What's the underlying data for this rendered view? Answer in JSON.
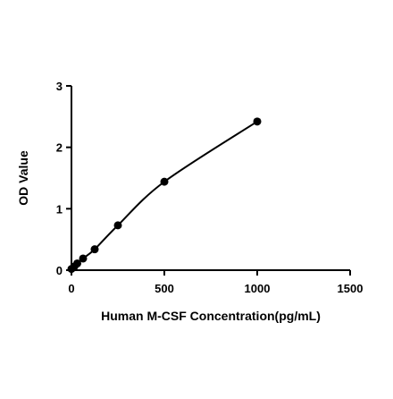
{
  "chart_data": {
    "type": "scatter",
    "title": "",
    "xlabel": "Human M-CSF Concentration(pg/mL)",
    "ylabel": "OD Value",
    "xlim": [
      0,
      1500
    ],
    "ylim": [
      0,
      3
    ],
    "x_ticks": [
      "0",
      "500",
      "1000",
      "1500"
    ],
    "y_ticks": [
      "0",
      "1",
      "2",
      "3"
    ],
    "grid": false,
    "legend": "none",
    "fit_curve": true,
    "colors": {
      "points": "#000000",
      "curve": "#000000",
      "axes": "#000000"
    },
    "series": [
      {
        "x": [
          0,
          15.6,
          31.25,
          62.5,
          125,
          250,
          500,
          1000
        ],
        "y": [
          0.02,
          0.06,
          0.11,
          0.19,
          0.34,
          0.73,
          1.44,
          2.42
        ]
      }
    ]
  }
}
